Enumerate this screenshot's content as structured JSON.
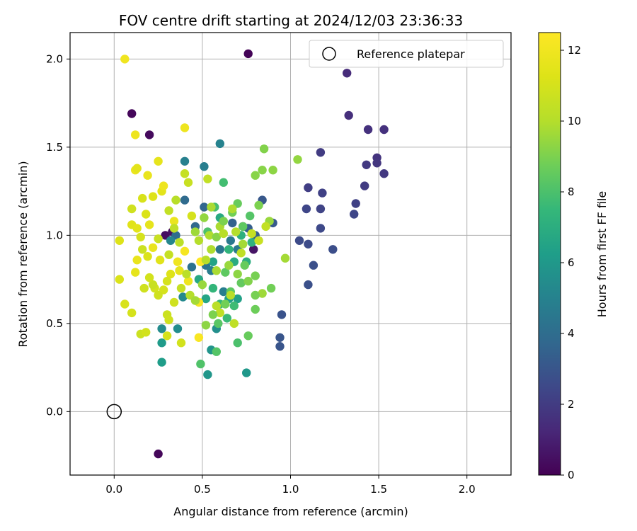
{
  "chart_data": {
    "type": "scatter",
    "title": "FOV centre drift starting at 2024/12/03 23:36:33",
    "xlabel": "Angular distance from reference (arcmin)",
    "ylabel": "Rotation from reference (arcmin)",
    "xlim": [
      -0.25,
      2.25
    ],
    "ylim": [
      -0.36,
      2.15
    ],
    "xticks": [
      0.0,
      0.5,
      1.0,
      1.5,
      2.0
    ],
    "yticks": [
      0.0,
      0.5,
      1.0,
      1.5,
      2.0
    ],
    "xtick_labels": [
      "0.0",
      "0.5",
      "1.0",
      "1.5",
      "2.0"
    ],
    "ytick_labels": [
      "0.0",
      "0.5",
      "1.0",
      "1.5",
      "2.0"
    ],
    "grid": true,
    "legend": {
      "placement": "top-right",
      "entries": [
        "Reference platepar"
      ]
    },
    "reference_point": {
      "x": 0.0,
      "y": 0.0,
      "marker": "open-circle"
    },
    "colorbar": {
      "label": "Hours from first FF file",
      "colormap": "viridis",
      "range": [
        0,
        12.5
      ],
      "ticks": [
        0,
        2,
        4,
        6,
        8,
        10,
        12
      ],
      "tick_labels": [
        "0",
        "2",
        "4",
        "6",
        "8",
        "10",
        "12"
      ]
    },
    "series_format": "[x, y, hours]",
    "points": [
      [
        0.76,
        2.03,
        0.1
      ],
      [
        0.1,
        1.69,
        0.2
      ],
      [
        0.2,
        1.57,
        0.3
      ],
      [
        0.25,
        -0.24,
        0.2
      ],
      [
        0.29,
        1.0,
        0.4
      ],
      [
        0.33,
        1.02,
        0.5
      ],
      [
        0.79,
        0.92,
        0.6
      ],
      [
        0.73,
        1.05,
        0.7
      ],
      [
        1.32,
        1.92,
        1.4
      ],
      [
        1.33,
        1.68,
        1.5
      ],
      [
        1.44,
        1.6,
        1.6
      ],
      [
        1.53,
        1.6,
        1.6
      ],
      [
        1.49,
        1.44,
        1.7
      ],
      [
        1.49,
        1.41,
        1.8
      ],
      [
        1.43,
        1.4,
        1.9
      ],
      [
        1.53,
        1.35,
        1.9
      ],
      [
        1.42,
        1.28,
        2.0
      ],
      [
        1.17,
        1.47,
        2.0
      ],
      [
        1.1,
        1.27,
        2.1
      ],
      [
        1.18,
        1.24,
        2.2
      ],
      [
        1.37,
        1.18,
        2.2
      ],
      [
        1.17,
        1.15,
        2.3
      ],
      [
        1.36,
        1.12,
        2.4
      ],
      [
        1.09,
        1.15,
        2.4
      ],
      [
        1.17,
        1.04,
        2.5
      ],
      [
        1.05,
        0.97,
        2.6
      ],
      [
        1.1,
        0.95,
        2.6
      ],
      [
        1.24,
        0.92,
        2.7
      ],
      [
        1.13,
        0.83,
        2.8
      ],
      [
        1.1,
        0.72,
        2.8
      ],
      [
        0.95,
        0.55,
        2.9
      ],
      [
        0.94,
        0.42,
        3.0
      ],
      [
        0.94,
        0.37,
        3.0
      ],
      [
        0.84,
        1.2,
        3.1
      ],
      [
        0.9,
        1.07,
        3.2
      ],
      [
        0.8,
        1.0,
        3.3
      ],
      [
        0.76,
        1.04,
        3.4
      ],
      [
        0.67,
        1.07,
        3.5
      ],
      [
        0.51,
        1.16,
        3.7
      ],
      [
        0.46,
        1.05,
        3.8
      ],
      [
        0.4,
        1.2,
        3.9
      ],
      [
        0.35,
        1.0,
        4.0
      ],
      [
        0.44,
        0.82,
        4.2
      ],
      [
        0.52,
        0.83,
        4.3
      ],
      [
        0.6,
        0.92,
        4.4
      ],
      [
        0.66,
        0.97,
        4.5
      ],
      [
        0.7,
        0.92,
        4.6
      ],
      [
        0.55,
        0.8,
        4.7
      ],
      [
        0.62,
        0.68,
        4.8
      ],
      [
        0.51,
        1.39,
        4.8
      ],
      [
        0.4,
        1.42,
        4.9
      ],
      [
        0.6,
        1.52,
        5.0
      ],
      [
        0.32,
        0.97,
        5.2
      ],
      [
        0.39,
        0.65,
        5.3
      ],
      [
        0.27,
        0.47,
        5.4
      ],
      [
        0.36,
        0.47,
        5.5
      ],
      [
        0.58,
        0.47,
        5.6
      ],
      [
        0.55,
        0.35,
        5.8
      ],
      [
        0.53,
        0.21,
        5.9
      ],
      [
        0.75,
        0.22,
        6.0
      ],
      [
        0.27,
        0.39,
        6.1
      ],
      [
        0.27,
        0.28,
        6.2
      ],
      [
        0.65,
        0.64,
        6.3
      ],
      [
        0.7,
        0.64,
        6.4
      ],
      [
        0.56,
        0.85,
        6.5
      ],
      [
        0.52,
        0.64,
        6.6
      ],
      [
        0.48,
        0.75,
        6.7
      ],
      [
        0.6,
        1.1,
        6.8
      ],
      [
        0.68,
        0.85,
        6.9
      ],
      [
        0.75,
        0.85,
        7.0
      ],
      [
        0.72,
        1.0,
        7.1
      ],
      [
        0.78,
        0.96,
        7.2
      ],
      [
        0.65,
        0.92,
        7.3
      ],
      [
        0.56,
        0.7,
        7.4
      ],
      [
        0.6,
        0.61,
        7.5
      ],
      [
        0.64,
        0.53,
        7.6
      ],
      [
        0.68,
        0.6,
        7.7
      ],
      [
        0.62,
        1.3,
        7.8
      ],
      [
        0.57,
        1.16,
        7.9
      ],
      [
        0.53,
        1.02,
        8.0
      ],
      [
        0.7,
        0.39,
        8.0
      ],
      [
        0.49,
        0.27,
        8.1
      ],
      [
        0.58,
        0.34,
        8.2
      ],
      [
        0.59,
        0.5,
        8.3
      ],
      [
        0.63,
        0.79,
        8.4
      ],
      [
        0.66,
        0.68,
        8.4
      ],
      [
        0.72,
        0.73,
        8.5
      ],
      [
        0.74,
        0.83,
        8.6
      ],
      [
        0.76,
        0.43,
        8.6
      ],
      [
        0.8,
        0.58,
        8.7
      ],
      [
        0.89,
        0.7,
        8.8
      ],
      [
        0.8,
        0.77,
        8.9
      ],
      [
        0.82,
        1.17,
        9.0
      ],
      [
        0.85,
        1.49,
        9.1
      ],
      [
        0.8,
        1.34,
        9.2
      ],
      [
        0.84,
        1.37,
        9.2
      ],
      [
        0.9,
        1.37,
        9.3
      ],
      [
        1.04,
        1.43,
        9.4
      ],
      [
        0.88,
        1.08,
        9.5
      ],
      [
        0.84,
        0.67,
        9.6
      ],
      [
        0.97,
        0.87,
        9.7
      ],
      [
        0.55,
        1.16,
        9.8
      ],
      [
        0.6,
        1.05,
        9.8
      ],
      [
        0.54,
        1.0,
        9.9
      ],
      [
        0.48,
        0.97,
        10.0
      ],
      [
        0.66,
        0.66,
        10.1
      ],
      [
        0.58,
        0.6,
        10.2
      ],
      [
        0.6,
        0.56,
        10.3
      ],
      [
        0.68,
        0.5,
        10.3
      ],
      [
        0.53,
        1.32,
        10.4
      ],
      [
        0.4,
        1.35,
        10.5
      ],
      [
        0.42,
        1.3,
        10.6
      ],
      [
        0.3,
        0.55,
        10.7
      ],
      [
        0.31,
        0.52,
        10.8
      ],
      [
        0.38,
        0.39,
        10.9
      ],
      [
        0.3,
        0.43,
        11.0
      ],
      [
        0.23,
        0.7,
        10.9
      ],
      [
        0.17,
        0.7,
        10.8
      ],
      [
        0.15,
        0.44,
        10.7
      ],
      [
        0.18,
        0.45,
        10.9
      ],
      [
        0.1,
        0.56,
        11.0
      ],
      [
        0.06,
        0.61,
        11.1
      ],
      [
        0.03,
        0.75,
        11.2
      ],
      [
        0.03,
        0.97,
        11.3
      ],
      [
        0.1,
        1.06,
        11.4
      ],
      [
        0.13,
        1.04,
        11.5
      ],
      [
        0.12,
        0.79,
        11.6
      ],
      [
        0.13,
        0.86,
        11.7
      ],
      [
        0.16,
        1.21,
        11.1
      ],
      [
        0.18,
        1.12,
        11.2
      ],
      [
        0.1,
        1.15,
        10.8
      ],
      [
        0.12,
        1.37,
        11.8
      ],
      [
        0.13,
        1.38,
        11.5
      ],
      [
        0.19,
        1.34,
        11.7
      ],
      [
        0.12,
        1.57,
        11.9
      ],
      [
        0.25,
        1.42,
        11.6
      ],
      [
        0.06,
        2.0,
        12.0
      ],
      [
        0.4,
        1.61,
        11.9
      ],
      [
        0.2,
        1.06,
        11.6
      ],
      [
        0.22,
        0.93,
        11.7
      ],
      [
        0.34,
        1.08,
        11.8
      ],
      [
        0.36,
        0.85,
        12.0
      ],
      [
        0.4,
        0.91,
        12.2
      ],
      [
        0.49,
        0.85,
        12.5
      ],
      [
        0.48,
        0.42,
        12.3
      ],
      [
        0.48,
        0.62,
        12.2
      ],
      [
        0.42,
        0.74,
        11.9
      ],
      [
        0.37,
        0.8,
        11.6
      ],
      [
        0.32,
        0.78,
        11.3
      ],
      [
        0.28,
        0.69,
        11.0
      ],
      [
        0.25,
        0.66,
        10.8
      ],
      [
        0.22,
        0.72,
        10.6
      ],
      [
        0.31,
        0.89,
        10.5
      ],
      [
        0.34,
        1.04,
        10.3
      ],
      [
        0.25,
        0.98,
        10.6
      ],
      [
        0.2,
        0.76,
        10.9
      ],
      [
        0.19,
        0.88,
        11.2
      ],
      [
        0.15,
        0.99,
        11.0
      ],
      [
        0.22,
        1.22,
        11.3
      ],
      [
        0.27,
        1.25,
        11.5
      ],
      [
        0.31,
        1.14,
        10.4
      ],
      [
        0.37,
        0.96,
        10.2
      ],
      [
        0.43,
        0.66,
        10.0
      ],
      [
        0.46,
        0.63,
        9.7
      ],
      [
        0.5,
        0.72,
        9.5
      ],
      [
        0.52,
        0.49,
        9.3
      ],
      [
        0.56,
        0.55,
        9.0
      ],
      [
        0.63,
        0.61,
        8.8
      ],
      [
        0.46,
        1.02,
        9.6
      ],
      [
        0.51,
        1.1,
        9.4
      ],
      [
        0.58,
        0.99,
        9.2
      ],
      [
        0.62,
        1.08,
        9.0
      ],
      [
        0.67,
        1.13,
        8.8
      ],
      [
        0.7,
        1.18,
        8.6
      ],
      [
        0.73,
        1.05,
        8.4
      ],
      [
        0.77,
        1.11,
        8.2
      ],
      [
        0.55,
        0.92,
        9.9
      ],
      [
        0.52,
        0.86,
        10.1
      ],
      [
        0.58,
        0.8,
        9.8
      ],
      [
        0.65,
        0.83,
        9.5
      ],
      [
        0.7,
        0.78,
        9.3
      ],
      [
        0.76,
        0.74,
        9.1
      ],
      [
        0.8,
        0.66,
        8.9
      ],
      [
        0.73,
        0.95,
        9.7
      ],
      [
        0.69,
        1.02,
        10.0
      ],
      [
        0.72,
        0.9,
        10.3
      ],
      [
        0.78,
        1.01,
        10.5
      ],
      [
        0.82,
        0.97,
        10.6
      ],
      [
        0.86,
        1.05,
        10.4
      ],
      [
        0.67,
        1.15,
        9.9
      ],
      [
        0.62,
        1.01,
        10.1
      ],
      [
        0.26,
        0.86,
        11.4
      ],
      [
        0.3,
        0.74,
        11.0
      ],
      [
        0.34,
        0.62,
        10.8
      ],
      [
        0.38,
        0.7,
        10.5
      ],
      [
        0.41,
        0.78,
        10.2
      ],
      [
        0.44,
        1.11,
        11.0
      ],
      [
        0.35,
        1.2,
        10.1
      ],
      [
        0.28,
        1.28,
        11.9
      ],
      [
        0.16,
        0.92,
        10.7
      ]
    ]
  }
}
